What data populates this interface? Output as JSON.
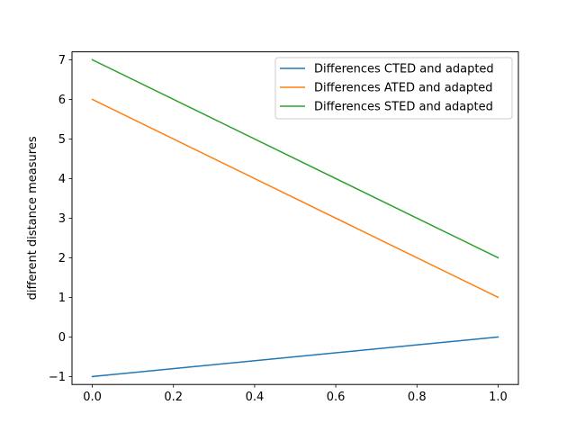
{
  "chart_data": {
    "type": "line",
    "title": "",
    "xlabel": "",
    "ylabel": "different distance measures",
    "xlim": [
      -0.05,
      1.05
    ],
    "ylim": [
      -1.2,
      7.2
    ],
    "xticks": [
      0.0,
      0.2,
      0.4,
      0.6,
      0.8,
      1.0
    ],
    "xtick_labels": [
      "0.0",
      "0.2",
      "0.4",
      "0.6",
      "0.8",
      "1.0"
    ],
    "yticks": [
      -1,
      0,
      1,
      2,
      3,
      4,
      5,
      6,
      7
    ],
    "ytick_labels": [
      "−1",
      "0",
      "1",
      "2",
      "3",
      "4",
      "5",
      "6",
      "7"
    ],
    "grid": false,
    "legend_position": "top-right",
    "series": [
      {
        "name": "Differences CTED and adapted",
        "color": "#1f77b4",
        "x": [
          0,
          1
        ],
        "y": [
          -1,
          0
        ]
      },
      {
        "name": "Differences ATED and adapted",
        "color": "#ff7f0e",
        "x": [
          0,
          1
        ],
        "y": [
          6,
          1
        ]
      },
      {
        "name": "Differences STED and adapted",
        "color": "#2ca02c",
        "x": [
          0,
          1
        ],
        "y": [
          7,
          2
        ]
      }
    ]
  }
}
